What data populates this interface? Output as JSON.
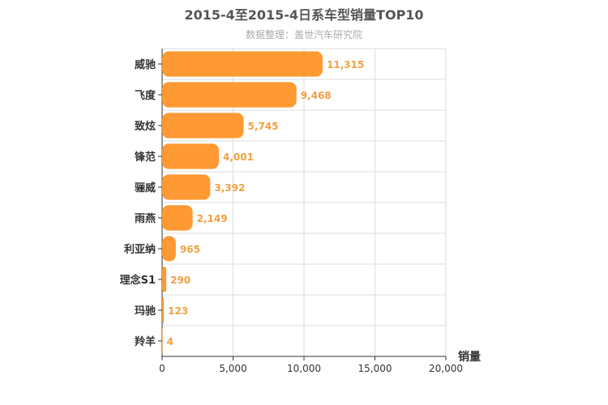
{
  "chart_data": {
    "type": "bar",
    "orientation": "horizontal",
    "title": "2015-4至2015-4日系车型销量TOP10",
    "subtitle": "数据整理：盖世汽车研究院",
    "categories": [
      "威驰",
      "飞度",
      "致炫",
      "锋范",
      "骊威",
      "雨燕",
      "利亚纳",
      "理念S1",
      "玛驰",
      "羚羊"
    ],
    "values": [
      11315,
      9468,
      5745,
      4001,
      3392,
      2149,
      965,
      290,
      123,
      4
    ],
    "value_labels": [
      "11,315",
      "9,468",
      "5,745",
      "4,001",
      "3,392",
      "2,149",
      "965",
      "290",
      "123",
      "4"
    ],
    "xlabel": "销量",
    "xlim": [
      0,
      20000
    ],
    "xticks": [
      0,
      5000,
      10000,
      15000,
      20000
    ],
    "xtick_labels": [
      "0",
      "5,000",
      "10,000",
      "15,000",
      "20,000"
    ],
    "grid": true,
    "legend": "none",
    "colors": {
      "bar": "#ff9933",
      "value_label": "#f0a040",
      "grid": "#dddddd",
      "axis": "#333333"
    }
  }
}
